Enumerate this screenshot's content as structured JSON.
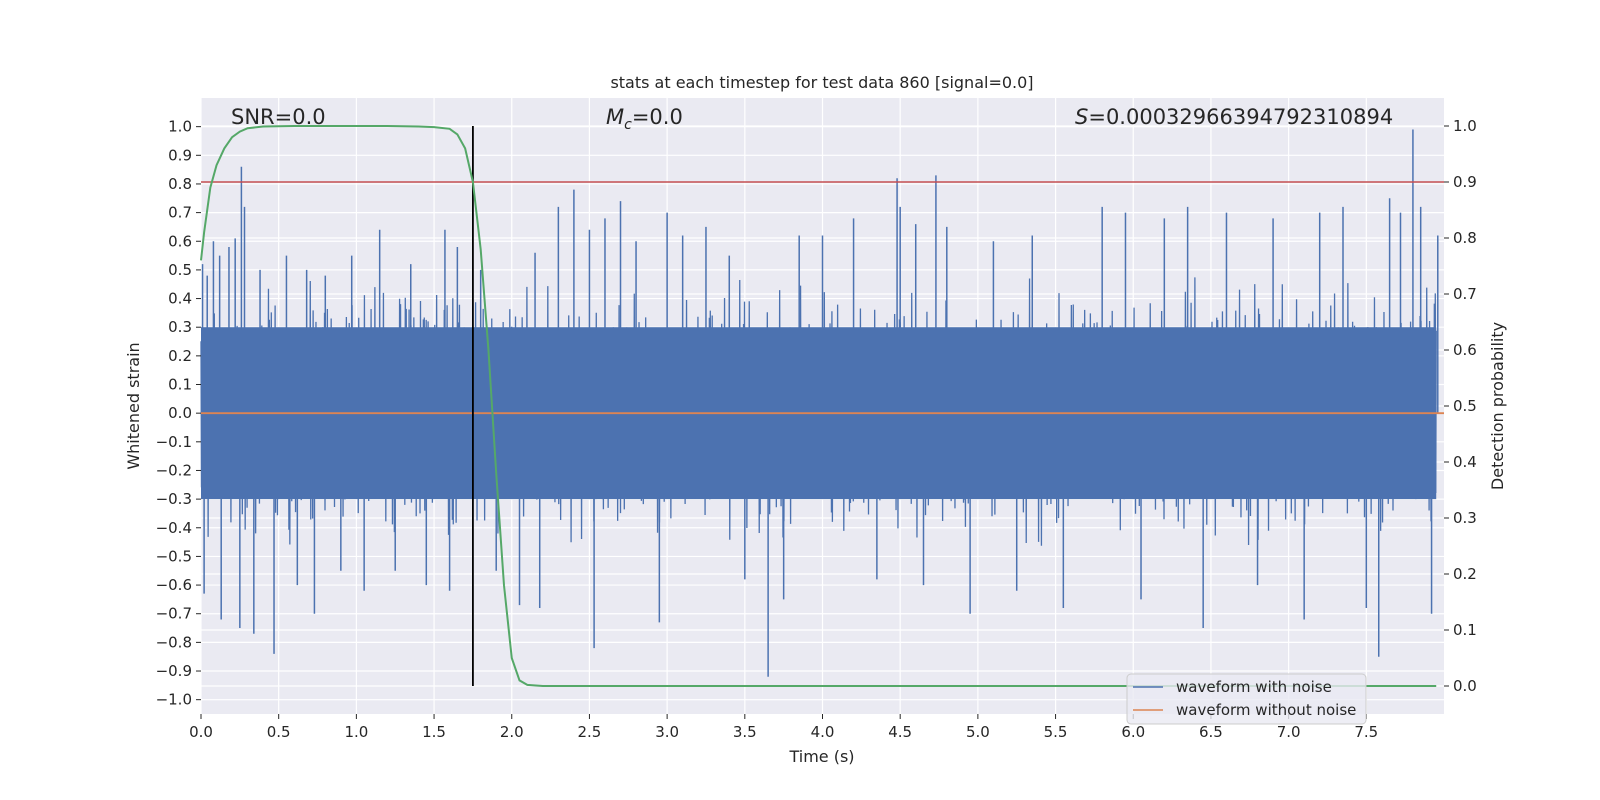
{
  "chart_data": {
    "type": "line",
    "title": "stats at each timestep for test data 860 [signal=0.0]",
    "xlabel": "Time (s)",
    "ylabel": "Whitened strain",
    "ylabel_right": "Detection probability",
    "xlim": [
      0.0,
      8.0
    ],
    "ylim": [
      -1.05,
      1.1
    ],
    "ylim_right": [
      -0.05,
      1.05
    ],
    "x_ticks": [
      0.0,
      0.5,
      1.0,
      1.5,
      2.0,
      2.5,
      3.0,
      3.5,
      4.0,
      4.5,
      5.0,
      5.5,
      6.0,
      6.5,
      7.0,
      7.5
    ],
    "x_tick_labels": [
      "0.0",
      "0.5",
      "1.0",
      "1.5",
      "2.0",
      "2.5",
      "3.0",
      "3.5",
      "4.0",
      "4.5",
      "5.0",
      "5.5",
      "6.0",
      "6.5",
      "7.0",
      "7.5"
    ],
    "y_ticks": [
      -1.0,
      -0.9,
      -0.8,
      -0.7,
      -0.6,
      -0.5,
      -0.4,
      -0.3,
      -0.2,
      -0.1,
      0.0,
      0.1,
      0.2,
      0.3,
      0.4,
      0.5,
      0.6,
      0.7,
      0.8,
      0.9,
      1.0
    ],
    "y_tick_labels": [
      "−1.0",
      "−0.9",
      "−0.8",
      "−0.7",
      "−0.6",
      "−0.5",
      "−0.4",
      "−0.3",
      "−0.2",
      "−0.1",
      "0.0",
      "0.1",
      "0.2",
      "0.3",
      "0.4",
      "0.5",
      "0.6",
      "0.7",
      "0.8",
      "0.9",
      "1.0"
    ],
    "y_right_ticks": [
      0.0,
      0.1,
      0.2,
      0.3,
      0.4,
      0.5,
      0.6,
      0.7,
      0.8,
      0.9,
      1.0
    ],
    "y_right_tick_labels": [
      "0.0",
      "0.1",
      "0.2",
      "0.3",
      "0.4",
      "0.5",
      "0.6",
      "0.7",
      "0.8",
      "0.9",
      "1.0"
    ],
    "grid": true,
    "legend_position": "lower-right",
    "annotations": {
      "snr": "SNR=0.0",
      "mc_symbol": "M",
      "mc_sub": "c",
      "mc_value": "=0.0",
      "s_symbol": "S",
      "s_value": "=0.00032966394792310894"
    },
    "series": [
      {
        "name": "waveform with noise",
        "color": "#4c72b0",
        "axis": "left",
        "band": [
          -0.3,
          0.3
        ],
        "spikes": [
          {
            "x": 0.01,
            "y": 0.52
          },
          {
            "x": 0.02,
            "y": -0.63
          },
          {
            "x": 0.04,
            "y": 0.48
          },
          {
            "x": 0.08,
            "y": 0.6
          },
          {
            "x": 0.12,
            "y": 0.55
          },
          {
            "x": 0.13,
            "y": -0.72
          },
          {
            "x": 0.18,
            "y": 0.58
          },
          {
            "x": 0.22,
            "y": 0.61
          },
          {
            "x": 0.25,
            "y": -0.75
          },
          {
            "x": 0.26,
            "y": 0.86
          },
          {
            "x": 0.28,
            "y": 0.72
          },
          {
            "x": 0.34,
            "y": -0.77
          },
          {
            "x": 0.38,
            "y": 0.5
          },
          {
            "x": 0.47,
            "y": -0.84
          },
          {
            "x": 0.55,
            "y": 0.55
          },
          {
            "x": 0.62,
            "y": -0.6
          },
          {
            "x": 0.68,
            "y": 0.5
          },
          {
            "x": 0.73,
            "y": -0.7
          },
          {
            "x": 0.8,
            "y": 0.48
          },
          {
            "x": 0.9,
            "y": -0.55
          },
          {
            "x": 0.97,
            "y": 0.55
          },
          {
            "x": 1.05,
            "y": -0.62
          },
          {
            "x": 1.15,
            "y": 0.64
          },
          {
            "x": 1.25,
            "y": -0.55
          },
          {
            "x": 1.35,
            "y": 0.52
          },
          {
            "x": 1.45,
            "y": -0.6
          },
          {
            "x": 1.57,
            "y": 0.64
          },
          {
            "x": 1.6,
            "y": -0.62
          },
          {
            "x": 1.65,
            "y": 0.58
          },
          {
            "x": 1.8,
            "y": 0.5
          },
          {
            "x": 1.9,
            "y": -0.55
          },
          {
            "x": 2.05,
            "y": -0.67
          },
          {
            "x": 2.15,
            "y": 0.56
          },
          {
            "x": 2.18,
            "y": -0.68
          },
          {
            "x": 2.3,
            "y": 0.72
          },
          {
            "x": 2.4,
            "y": 0.78
          },
          {
            "x": 2.5,
            "y": 0.64
          },
          {
            "x": 2.53,
            "y": -0.82
          },
          {
            "x": 2.6,
            "y": 0.68
          },
          {
            "x": 2.7,
            "y": 0.74
          },
          {
            "x": 2.8,
            "y": 0.6
          },
          {
            "x": 2.95,
            "y": -0.73
          },
          {
            "x": 3.0,
            "y": 0.7
          },
          {
            "x": 3.1,
            "y": 0.62
          },
          {
            "x": 3.25,
            "y": 0.65
          },
          {
            "x": 3.4,
            "y": 0.55
          },
          {
            "x": 3.5,
            "y": -0.58
          },
          {
            "x": 3.65,
            "y": -0.92
          },
          {
            "x": 3.75,
            "y": -0.65
          },
          {
            "x": 3.85,
            "y": 0.62
          },
          {
            "x": 4.0,
            "y": 0.62
          },
          {
            "x": 4.2,
            "y": 0.68
          },
          {
            "x": 4.35,
            "y": -0.58
          },
          {
            "x": 4.48,
            "y": 0.82
          },
          {
            "x": 4.5,
            "y": 0.72
          },
          {
            "x": 4.6,
            "y": 0.66
          },
          {
            "x": 4.65,
            "y": -0.6
          },
          {
            "x": 4.73,
            "y": 0.83
          },
          {
            "x": 4.8,
            "y": 0.65
          },
          {
            "x": 4.95,
            "y": -0.7
          },
          {
            "x": 5.1,
            "y": 0.6
          },
          {
            "x": 5.25,
            "y": -0.62
          },
          {
            "x": 5.35,
            "y": 0.62
          },
          {
            "x": 5.55,
            "y": -0.68
          },
          {
            "x": 5.8,
            "y": 0.72
          },
          {
            "x": 5.95,
            "y": 0.7
          },
          {
            "x": 6.05,
            "y": -0.65
          },
          {
            "x": 6.2,
            "y": 0.68
          },
          {
            "x": 6.35,
            "y": 0.72
          },
          {
            "x": 6.45,
            "y": -0.75
          },
          {
            "x": 6.6,
            "y": 0.7
          },
          {
            "x": 6.8,
            "y": -0.6
          },
          {
            "x": 6.9,
            "y": 0.68
          },
          {
            "x": 7.1,
            "y": -0.72
          },
          {
            "x": 7.2,
            "y": 0.7
          },
          {
            "x": 7.35,
            "y": 0.72
          },
          {
            "x": 7.5,
            "y": -0.68
          },
          {
            "x": 7.58,
            "y": -0.85
          },
          {
            "x": 7.65,
            "y": 0.75
          },
          {
            "x": 7.72,
            "y": 0.7
          },
          {
            "x": 7.8,
            "y": 0.99
          },
          {
            "x": 7.85,
            "y": 0.72
          },
          {
            "x": 7.92,
            "y": -0.7
          },
          {
            "x": 7.96,
            "y": 0.62
          }
        ]
      },
      {
        "name": "waveform without noise",
        "color": "#dd8452",
        "axis": "left",
        "x": [
          0.0,
          8.0
        ],
        "y": [
          0.0,
          0.0
        ]
      },
      {
        "name": "detection probability",
        "color": "#55a868",
        "axis": "right",
        "x": [
          0.0,
          0.02,
          0.06,
          0.1,
          0.15,
          0.2,
          0.25,
          0.3,
          0.4,
          0.6,
          0.8,
          1.0,
          1.2,
          1.4,
          1.5,
          1.6,
          1.65,
          1.7,
          1.75,
          1.8,
          1.85,
          1.9,
          1.95,
          2.0,
          2.05,
          2.1,
          2.2,
          2.5,
          3.0,
          4.0,
          5.0,
          6.0,
          7.0,
          7.95
        ],
        "y": [
          0.76,
          0.81,
          0.89,
          0.93,
          0.96,
          0.98,
          0.99,
          0.996,
          0.999,
          1.0,
          1.0,
          1.0,
          1.0,
          0.999,
          0.998,
          0.995,
          0.985,
          0.96,
          0.9,
          0.78,
          0.6,
          0.38,
          0.18,
          0.05,
          0.01,
          0.002,
          0.0,
          0.0,
          0.0,
          0.0,
          0.0,
          0.0,
          0.0,
          0.0
        ]
      }
    ],
    "reference_lines": [
      {
        "orientation": "vertical",
        "x": 1.75,
        "y_right_range": [
          0.0,
          1.0
        ],
        "color": "#000000"
      },
      {
        "orientation": "horizontal",
        "y_right": 0.9,
        "color": "#c44e52"
      }
    ]
  }
}
